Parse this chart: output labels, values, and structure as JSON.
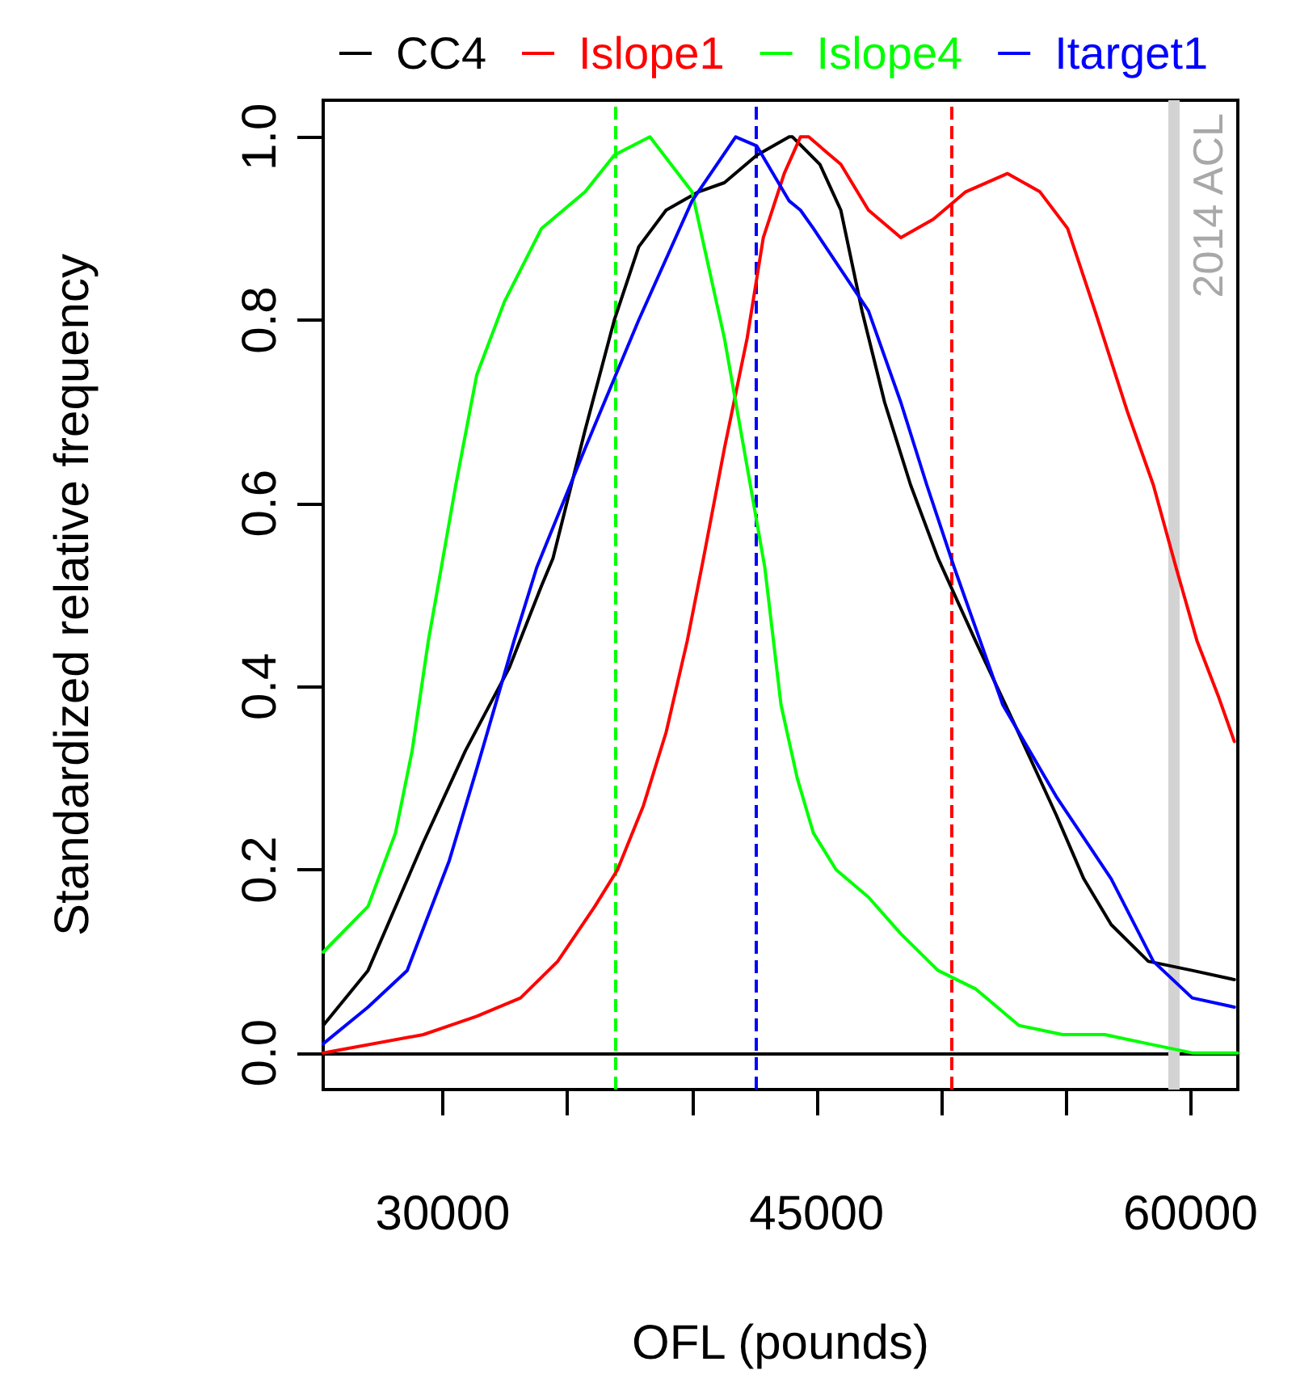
{
  "chart_data": {
    "type": "line",
    "xlabel": "OFL (pounds)",
    "ylabel": "Standardized relative frequency",
    "xlim": [
      25200,
      61900
    ],
    "ylim": [
      -0.04,
      1.04
    ],
    "xticks": [
      30000,
      {
        "value": 35000,
        "label": null
      },
      {
        "value": 40000,
        "label": null
      },
      45000,
      {
        "value": 50000,
        "label": null
      },
      {
        "value": 55000,
        "label": null
      },
      60000
    ],
    "yticks": [
      {
        "value": 0,
        "label": "0.0"
      },
      {
        "value": 0.2,
        "label": "0.2"
      },
      {
        "value": 0.4,
        "label": "0.4"
      },
      {
        "value": 0.6,
        "label": "0.6"
      },
      {
        "value": 0.8,
        "label": "0.8"
      },
      {
        "value": 1,
        "label": "1.0"
      }
    ],
    "grid": false,
    "legend": "top",
    "marker": "none",
    "line_style": "solid",
    "series": [
      {
        "name": "CC4",
        "color": "#000000",
        "x": [
          25200,
          27000,
          29220,
          30910,
          32660,
          33960,
          34420,
          35710,
          36880,
          37860,
          38960,
          40260,
          41300,
          42600,
          43900,
          44030,
          45130,
          45970,
          46820,
          47730,
          48770,
          49870,
          51370,
          52920,
          54610,
          55720,
          56820,
          58310,
          60070,
          61760
        ],
        "values": [
          0.03,
          0.09,
          0.23,
          0.33,
          0.42,
          0.51,
          0.54,
          0.68,
          0.8,
          0.88,
          0.92,
          0.94,
          0.95,
          0.98,
          1.0,
          1.0,
          0.97,
          0.92,
          0.81,
          0.71,
          0.62,
          0.54,
          0.45,
          0.36,
          0.26,
          0.19,
          0.14,
          0.1,
          0.09,
          0.08
        ]
      },
      {
        "name": "Islope1",
        "color": "#ff0000",
        "x": [
          25200,
          29220,
          31360,
          33120,
          34610,
          36100,
          37010,
          38050,
          38960,
          39810,
          40460,
          41300,
          42210,
          42860,
          43700,
          44350,
          44680,
          45970,
          47080,
          48380,
          49680,
          50980,
          52660,
          53960,
          55070,
          56170,
          57470,
          58510,
          59420,
          60260,
          61110,
          61760
        ],
        "values": [
          0.0,
          0.02,
          0.04,
          0.06,
          0.1,
          0.16,
          0.2,
          0.27,
          0.35,
          0.45,
          0.54,
          0.66,
          0.78,
          0.89,
          0.96,
          1.0,
          1.0,
          0.97,
          0.92,
          0.89,
          0.91,
          0.94,
          0.96,
          0.94,
          0.9,
          0.81,
          0.7,
          0.62,
          0.53,
          0.45,
          0.39,
          0.34
        ]
      },
      {
        "name": "Islope4",
        "color": "#00ff00",
        "x": [
          25200,
          27000,
          28100,
          28770,
          29420,
          29940,
          30520,
          31360,
          32470,
          33960,
          35710,
          36880,
          38310,
          40000,
          41300,
          42210,
          42920,
          43570,
          44220,
          44870,
          45780,
          47080,
          48380,
          49870,
          51370,
          53120,
          54870,
          56560,
          58310,
          60070,
          61890
        ],
        "values": [
          0.11,
          0.16,
          0.24,
          0.33,
          0.45,
          0.53,
          0.62,
          0.74,
          0.82,
          0.9,
          0.94,
          0.98,
          1.0,
          0.94,
          0.78,
          0.64,
          0.53,
          0.38,
          0.3,
          0.24,
          0.2,
          0.17,
          0.13,
          0.09,
          0.07,
          0.03,
          0.02,
          0.02,
          0.01,
          0.0,
          0.0
        ]
      },
      {
        "name": "Itarget1",
        "color": "#0000ff",
        "x": [
          25200,
          27000,
          28570,
          30260,
          31360,
          32860,
          33770,
          35710,
          37860,
          40000,
          41750,
          42600,
          43900,
          44350,
          44870,
          47080,
          48380,
          49420,
          50520,
          52470,
          54610,
          56820,
          58510,
          60070,
          61760
        ],
        "values": [
          0.01,
          0.05,
          0.09,
          0.21,
          0.31,
          0.45,
          0.53,
          0.66,
          0.8,
          0.93,
          1.0,
          0.99,
          0.93,
          0.92,
          0.9,
          0.81,
          0.71,
          0.62,
          0.53,
          0.38,
          0.28,
          0.19,
          0.1,
          0.06,
          0.05
        ]
      }
    ],
    "ref_lines": [
      {
        "axis": "y",
        "value": 0,
        "color": "#000000",
        "line_style": "solid"
      },
      {
        "axis": "x",
        "value": 36950,
        "color": "#00ff00",
        "line_style": "dashed"
      },
      {
        "axis": "x",
        "value": 42530,
        "color": "#0000ff",
        "line_style": "dashed"
      },
      {
        "axis": "x",
        "value": 50390,
        "color": "#ff0000",
        "line_style": "dashed"
      },
      {
        "axis": "x",
        "value": 59350,
        "color": "#d3d3d3",
        "line_style": "solid",
        "label": "2014 ACL"
      }
    ]
  }
}
